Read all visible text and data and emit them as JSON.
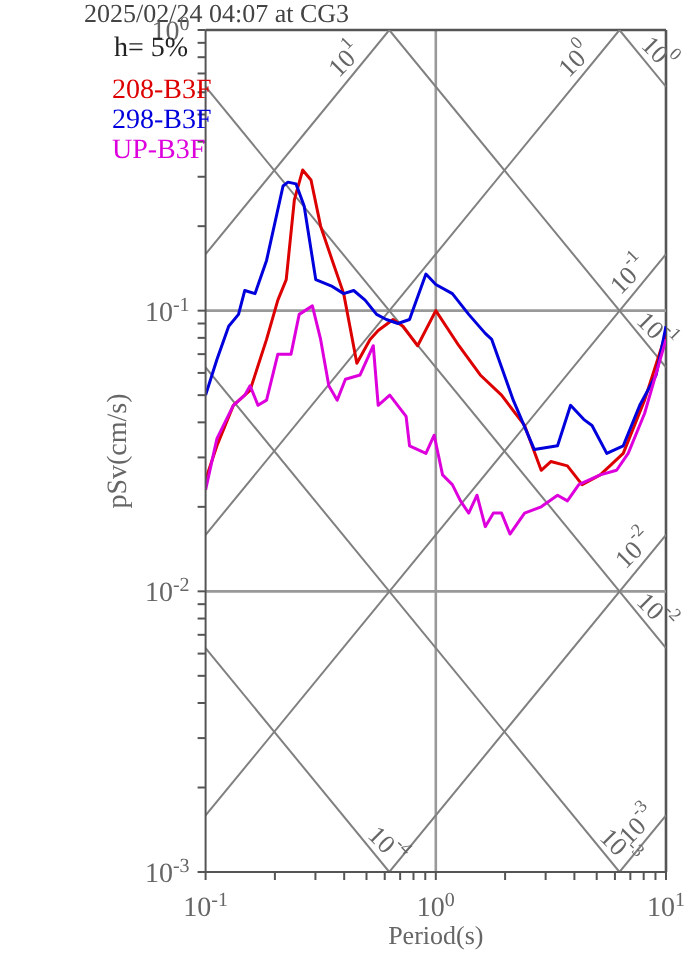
{
  "chart_data": {
    "type": "line",
    "title": "2025/02/24 04:07 at CG3",
    "xlabel": "Period(s)",
    "ylabel": "pSv(cm/s)",
    "log": "xy",
    "grid": true,
    "legend": "top left",
    "marker": "none",
    "line_style": "solid",
    "xlim": [
      0.1,
      10
    ],
    "ylim": [
      0.001,
      1
    ],
    "xticks": [
      {
        "value": 0.1,
        "label": "10$^{-1}$"
      },
      {
        "value": 0.2,
        "label": null
      },
      {
        "value": 0.3,
        "label": null
      },
      {
        "value": 0.4,
        "label": null
      },
      {
        "value": 0.5,
        "label": null
      },
      {
        "value": 0.6,
        "label": null
      },
      {
        "value": 0.7,
        "label": null
      },
      {
        "value": 0.8,
        "label": null
      },
      {
        "value": 0.9,
        "label": null
      },
      {
        "value": 1,
        "label": "10$^{0}$"
      },
      {
        "value": 2,
        "label": null
      },
      {
        "value": 3,
        "label": null
      },
      {
        "value": 4,
        "label": null
      },
      {
        "value": 5,
        "label": null
      },
      {
        "value": 6,
        "label": null
      },
      {
        "value": 7,
        "label": null
      },
      {
        "value": 8,
        "label": null
      },
      {
        "value": 9,
        "label": null
      },
      {
        "value": 10,
        "label": "10$^{1}$"
      }
    ],
    "yticks": [
      {
        "value": 0.001,
        "label": "10$^{-3}$"
      },
      {
        "value": 0.002,
        "label": null
      },
      {
        "value": 0.003,
        "label": null
      },
      {
        "value": 0.004,
        "label": null
      },
      {
        "value": 0.005,
        "label": null
      },
      {
        "value": 0.006,
        "label": null
      },
      {
        "value": 0.007,
        "label": null
      },
      {
        "value": 0.008,
        "label": null
      },
      {
        "value": 0.009,
        "label": null
      },
      {
        "value": 0.01,
        "label": "10$^{-2}$"
      },
      {
        "value": 0.02,
        "label": null
      },
      {
        "value": 0.03,
        "label": null
      },
      {
        "value": 0.04,
        "label": null
      },
      {
        "value": 0.05,
        "label": null
      },
      {
        "value": 0.06,
        "label": null
      },
      {
        "value": 0.07,
        "label": null
      },
      {
        "value": 0.08,
        "label": null
      },
      {
        "value": 0.09,
        "label": null
      },
      {
        "value": 0.1,
        "label": "10$^{-1}$"
      },
      {
        "value": 0.2,
        "label": null
      },
      {
        "value": 0.3,
        "label": null
      },
      {
        "value": 0.4,
        "label": null
      },
      {
        "value": 0.5,
        "label": null
      },
      {
        "value": 0.6,
        "label": null
      },
      {
        "value": 0.7,
        "label": null
      },
      {
        "value": 0.8,
        "label": null
      },
      {
        "value": 0.9,
        "label": null
      },
      {
        "value": 1,
        "label": "10$^{0}$"
      }
    ],
    "series": [
      {
        "type": "line",
        "color": "#808080",
        "x": [
          0.1,
          0.628
        ],
        "values": [
          0.159,
          1
        ]
      },
      {
        "type": "line",
        "color": "#808080",
        "x": [
          0.1,
          6.28
        ],
        "values": [
          0.0159,
          1
        ]
      },
      {
        "type": "line",
        "color": "#808080",
        "x": [
          0.1,
          10
        ],
        "values": [
          0.00159,
          0.159
        ]
      },
      {
        "type": "line",
        "color": "#808080",
        "x": [
          0.628,
          10
        ],
        "values": [
          0.001,
          0.0159
        ]
      },
      {
        "type": "line",
        "color": "#808080",
        "x": [
          6.28,
          10
        ],
        "values": [
          0.001,
          0.00159
        ]
      },
      {
        "type": "line",
        "color": "#808080",
        "x": [
          0.1,
          10
        ],
        "values": [
          0.628,
          0.00628
        ]
      },
      {
        "type": "line",
        "color": "#808080",
        "x": [
          0.628,
          10
        ],
        "values": [
          1,
          0.0628
        ]
      },
      {
        "type": "line",
        "color": "#808080",
        "x": [
          6.28,
          10
        ],
        "values": [
          1,
          0.628
        ]
      },
      {
        "type": "line",
        "color": "#808080",
        "x": [
          0.1,
          6.28
        ],
        "values": [
          0.0628,
          0.001
        ]
      },
      {
        "type": "line",
        "color": "#808080",
        "x": [
          0.1,
          0.628
        ],
        "values": [
          0.00628,
          0.001
        ]
      },
      {
        "type": "line",
        "name": "208-B3F",
        "color": "#dd0000",
        "x": [
          0.1,
          0.112,
          0.132,
          0.156,
          0.184,
          0.206,
          0.224,
          0.243,
          0.264,
          0.287,
          0.316,
          0.355,
          0.398,
          0.418,
          0.454,
          0.518,
          0.562,
          0.652,
          0.72,
          0.834,
          1.0,
          1.26,
          1.56,
          1.93,
          2.43,
          2.87,
          3.16,
          3.73,
          4.32,
          5.18,
          6.52,
          8.07,
          10
        ],
        "values": [
          0.025,
          0.033,
          0.046,
          0.052,
          0.079,
          0.109,
          0.129,
          0.248,
          0.317,
          0.292,
          0.2,
          0.151,
          0.115,
          0.093,
          0.065,
          0.079,
          0.085,
          0.093,
          0.088,
          0.075,
          0.1,
          0.075,
          0.059,
          0.05,
          0.039,
          0.027,
          0.029,
          0.028,
          0.024,
          0.026,
          0.031,
          0.048,
          0.083
        ]
      },
      {
        "type": "line",
        "name": "298-B3F",
        "color": "#0000dd",
        "x": [
          0.1,
          0.112,
          0.126,
          0.139,
          0.148,
          0.164,
          0.184,
          0.217,
          0.228,
          0.247,
          0.268,
          0.301,
          0.355,
          0.398,
          0.44,
          0.493,
          0.553,
          0.61,
          0.685,
          0.769,
          0.807,
          0.906,
          1.0,
          1.18,
          1.39,
          1.64,
          1.75,
          2.17,
          2.68,
          3.38,
          3.85,
          4.39,
          4.77,
          5.53,
          6.52,
          7.69,
          9.06,
          10
        ],
        "values": [
          0.05,
          0.067,
          0.088,
          0.097,
          0.118,
          0.115,
          0.151,
          0.278,
          0.287,
          0.283,
          0.236,
          0.129,
          0.122,
          0.115,
          0.118,
          0.109,
          0.097,
          0.093,
          0.09,
          0.093,
          0.104,
          0.135,
          0.124,
          0.115,
          0.097,
          0.083,
          0.079,
          0.048,
          0.032,
          0.033,
          0.046,
          0.041,
          0.039,
          0.031,
          0.033,
          0.046,
          0.059,
          0.088
        ]
      },
      {
        "type": "line",
        "name": "UP-B3F",
        "color": "#dd00dd",
        "x": [
          0.1,
          0.112,
          0.132,
          0.148,
          0.156,
          0.169,
          0.184,
          0.206,
          0.235,
          0.255,
          0.291,
          0.316,
          0.343,
          0.373,
          0.405,
          0.469,
          0.535,
          0.562,
          0.631,
          0.743,
          0.769,
          0.906,
          0.984,
          1.07,
          1.18,
          1.28,
          1.39,
          1.51,
          1.64,
          1.78,
          1.93,
          2.1,
          2.43,
          2.87,
          3.38,
          3.73,
          4.18,
          5.18,
          6.1,
          6.85,
          8.07,
          10
        ],
        "values": [
          0.023,
          0.035,
          0.046,
          0.05,
          0.054,
          0.046,
          0.048,
          0.07,
          0.07,
          0.097,
          0.104,
          0.079,
          0.054,
          0.048,
          0.057,
          0.059,
          0.075,
          0.046,
          0.05,
          0.042,
          0.033,
          0.031,
          0.036,
          0.026,
          0.024,
          0.021,
          0.019,
          0.022,
          0.017,
          0.019,
          0.019,
          0.016,
          0.019,
          0.02,
          0.022,
          0.021,
          0.024,
          0.026,
          0.027,
          0.031,
          0.043,
          0.079
        ]
      }
    ],
    "annotations": [
      "h= 5%",
      {
        "text": "10$^{1}$",
        "x": 0.45,
        "y": 0.716
      },
      {
        "text": "10$^{0}$",
        "x": 4.5,
        "y": 0.716
      },
      {
        "text": "10$^{0}$",
        "x": 8.3,
        "y": 0.757
      },
      {
        "text": "10$^{-1}$",
        "x": 7.7,
        "y": 0.1226
      },
      {
        "text": "10$^{-1}$",
        "x": 8.1,
        "y": 0.0775
      },
      {
        "text": "10$^{-2}$",
        "x": 8.1,
        "y": 0.0129
      },
      {
        "text": "10$^{-2}$",
        "x": 8.1,
        "y": 0.00775
      },
      {
        "text": "10$^{-3}$",
        "x": 5.6,
        "y": 0.00112
      },
      {
        "text": "10$^{-3}$",
        "x": 8.4,
        "y": 0.00134
      },
      {
        "text": "10$^{-4}$",
        "x": 0.55,
        "y": 0.00114
      }
    ]
  }
}
